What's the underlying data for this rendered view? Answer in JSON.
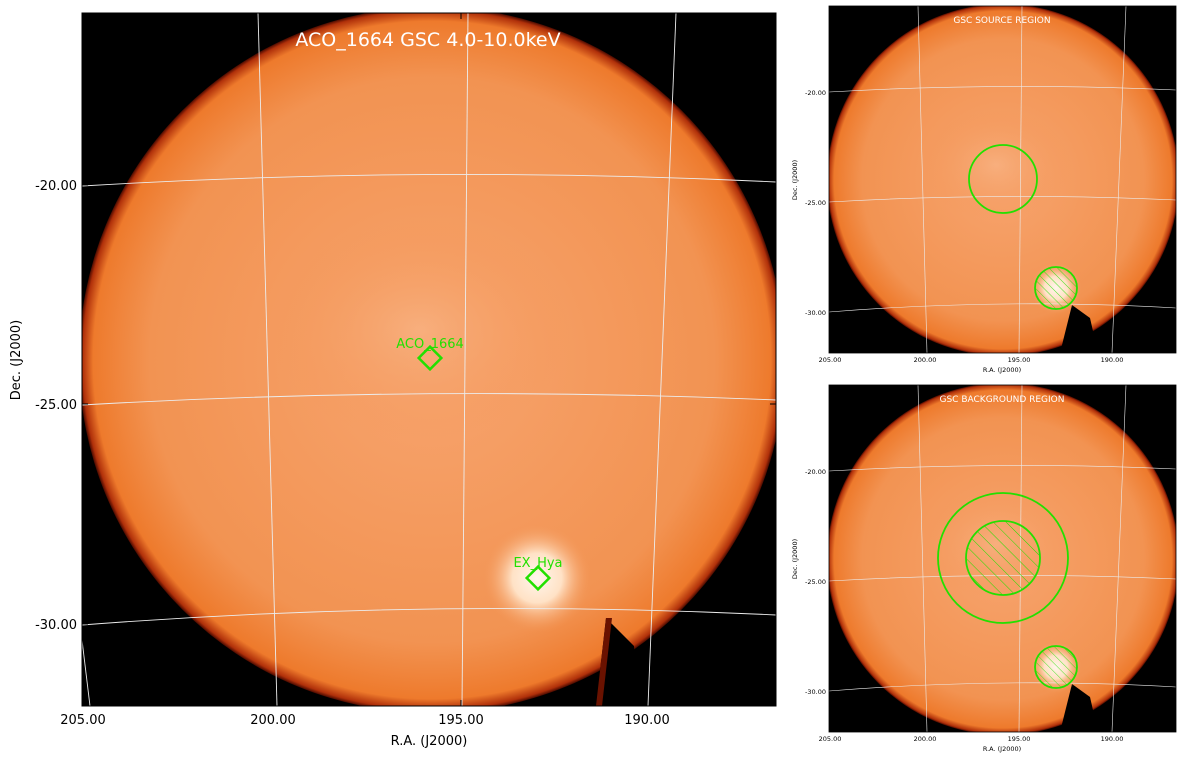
{
  "main_panel": {
    "title": "ACO_1664 GSC 4.0-10.0keV",
    "xlabel": "R.A. (J2000)",
    "ylabel": "Dec. (J2000)",
    "x_ticks": [
      "205.00",
      "200.00",
      "195.00",
      "190.00"
    ],
    "y_ticks": [
      "-20.00",
      "-25.00",
      "-30.00"
    ],
    "sources": [
      {
        "name": "ACO_1664"
      },
      {
        "name": "EX_Hya"
      }
    ]
  },
  "source_panel": {
    "title": "GSC SOURCE REGION",
    "xlabel": "R.A. (J2000)",
    "ylabel": "Dec. (J2000)",
    "x_ticks": [
      "205.00",
      "200.00",
      "195.00",
      "190.00"
    ],
    "y_ticks": [
      "-20.00",
      "-25.00",
      "-30.00"
    ]
  },
  "background_panel": {
    "title": "GSC BACKGROUND REGION",
    "xlabel": "R.A. (J2000)",
    "ylabel": "Dec. (J2000)",
    "x_ticks": [
      "205.00",
      "200.00",
      "195.00",
      "190.00"
    ],
    "y_ticks": [
      "-20.00",
      "-25.00",
      "-30.00"
    ]
  },
  "colors": {
    "map_fill": "#f39453",
    "map_edge": "#8a1a00",
    "background": "#000000",
    "region": "#22e000",
    "grid": "#e8e8e8",
    "title_text": "#ffffff"
  }
}
